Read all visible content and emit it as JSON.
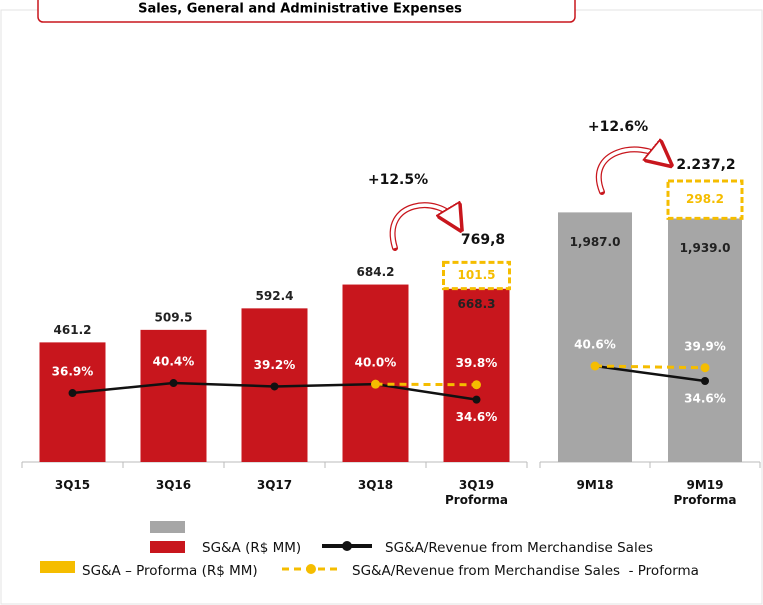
{
  "title": "Sales, General and Administrative Expenses",
  "chart_data": [
    {
      "type": "bar",
      "categories": [
        "3Q15",
        "3Q16",
        "3Q17",
        "3Q18",
        "3Q19\nProforma"
      ],
      "ylim": [
        0,
        1550
      ],
      "y2lim": [
        12.8,
        153.3
      ],
      "series": [
        {
          "name": "SG&A (R$ MM)",
          "type": "bar",
          "color": "#c8161d",
          "values": [
            461.2,
            509.5,
            592.4,
            684.2,
            668.3
          ]
        },
        {
          "name": "SG&A – Proforma (R$ MM)",
          "type": "bar",
          "stacked": true,
          "color": "#f5bd00",
          "values": [
            null,
            null,
            null,
            null,
            101.5
          ]
        },
        {
          "name": "SG&A/Revenue from Merchandise Sales",
          "type": "line",
          "axis": "y2",
          "color": "#111111",
          "values": [
            36.9,
            40.4,
            39.2,
            40.0,
            34.6
          ],
          "value_labels": [
            "36.9%",
            "40.4%",
            "39.2%",
            "40.0%",
            "34.6%"
          ]
        },
        {
          "name": "SG&A/Revenue from Merchandise Sales  - Proforma",
          "type": "line",
          "axis": "y2",
          "dashed": true,
          "color": "#f5bd00",
          "values": [
            null,
            null,
            null,
            40.0,
            39.8
          ],
          "value_labels": [
            null,
            null,
            null,
            null,
            "39.8%"
          ]
        }
      ],
      "annotations": [
        "+12.5%",
        "769,8"
      ]
    },
    {
      "type": "bar",
      "categories": [
        "9M18",
        "9M19\nProforma"
      ],
      "ylim": [
        0,
        3200
      ],
      "y2lim": [
        2.2,
        163
      ],
      "series": [
        {
          "type": "bar",
          "color": "#a6a6a6",
          "values": [
            1987.0,
            1939.0
          ],
          "value_labels": [
            "1,987.0",
            "1,939.0"
          ]
        },
        {
          "type": "bar",
          "stacked": true,
          "color": "#f5bd00",
          "values": [
            null,
            298.2
          ]
        },
        {
          "type": "line",
          "axis": "y2",
          "color": "#111111",
          "values": [
            40.6,
            34.6
          ],
          "value_labels": [
            "40.6%",
            "34.6%"
          ]
        },
        {
          "type": "line",
          "axis": "y2",
          "dashed": true,
          "color": "#f5bd00",
          "values": [
            40.6,
            39.9
          ],
          "value_labels": [
            null,
            "39.9%"
          ]
        }
      ],
      "annotations": [
        "+12.6%",
        "2.237,2"
      ]
    }
  ]
}
